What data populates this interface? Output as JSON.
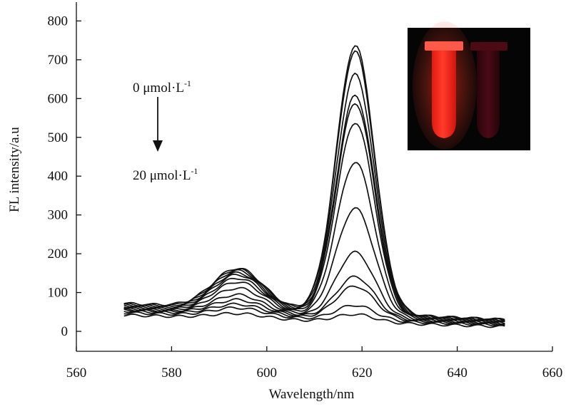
{
  "chart_data": {
    "type": "line",
    "title": "",
    "xlabel": "Wavelength/nm",
    "ylabel": "FL intensity/a.u",
    "xlim": [
      560,
      660
    ],
    "ylim": [
      -50,
      820
    ],
    "xticks": [
      "560",
      "580",
      "600",
      "620",
      "640",
      "660"
    ],
    "yticks": [
      "0",
      "100",
      "200",
      "300",
      "400",
      "500",
      "600",
      "700",
      "800"
    ],
    "grid": false,
    "legend": "none",
    "x_range": [
      570,
      650
    ],
    "series_params": [
      {
        "a": 175,
        "b": 755,
        "base": 72,
        "decline": 30
      },
      {
        "a": 172,
        "b": 738,
        "base": 70,
        "decline": 30
      },
      {
        "a": 168,
        "b": 680,
        "base": 68,
        "decline": 28
      },
      {
        "a": 162,
        "b": 625,
        "base": 66,
        "decline": 27
      },
      {
        "a": 157,
        "b": 605,
        "base": 64,
        "decline": 26
      },
      {
        "a": 148,
        "b": 555,
        "base": 62,
        "decline": 25
      },
      {
        "a": 138,
        "b": 452,
        "base": 60,
        "decline": 24
      },
      {
        "a": 122,
        "b": 333,
        "base": 58,
        "decline": 22
      },
      {
        "a": 105,
        "b": 220,
        "base": 56,
        "decline": 20
      },
      {
        "a": 92,
        "b": 157,
        "base": 55,
        "decline": 19
      },
      {
        "a": 80,
        "b": 132,
        "base": 52,
        "decline": 18
      },
      {
        "a": 70,
        "b": 82,
        "base": 48,
        "decline": 16
      },
      {
        "a": 55,
        "b": 58,
        "base": 42,
        "decline": 12
      }
    ],
    "annotations": {
      "start_text": "0 μmol·L",
      "start_sup": "-1",
      "end_text": "20 μmol·L",
      "end_sup": "-1"
    }
  },
  "inset": {
    "bg": "#050505",
    "tube_left_color": "#ff2a1e",
    "tube_right_color": "#3a0610"
  }
}
